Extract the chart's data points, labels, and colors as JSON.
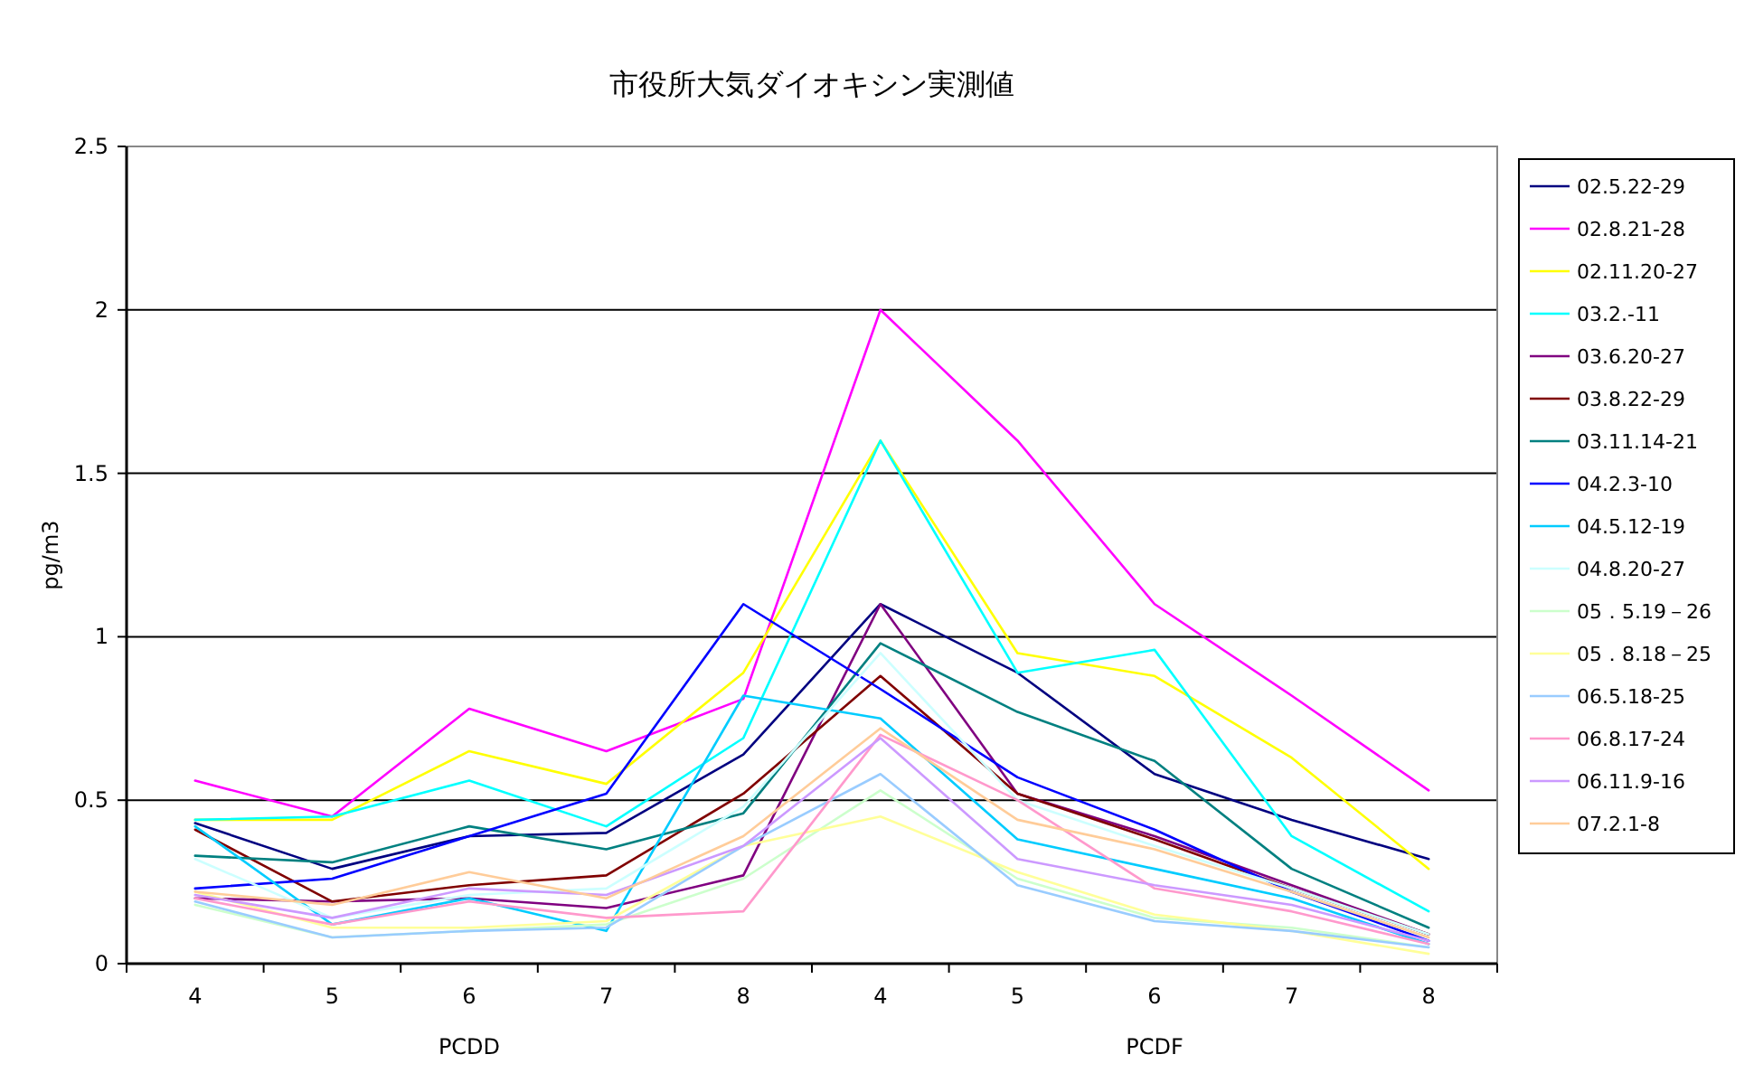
{
  "chart_data": {
    "type": "line",
    "title": "市役所大気ダイオキシン実測値",
    "ylabel": "pg/m3",
    "categories": [
      "4",
      "5",
      "6",
      "7",
      "8",
      "4",
      "5",
      "6",
      "7",
      "8"
    ],
    "annotations": [
      "PCDD",
      "PCDF"
    ],
    "ylim": [
      0,
      2.5
    ],
    "yticks": [
      0,
      0.5,
      1,
      1.5,
      2,
      2.5
    ],
    "grid": "y",
    "legend": "right",
    "marker": "none",
    "line_style": "solid",
    "series": [
      {
        "name": "02.5.22-29",
        "color": "#000080",
        "values": [
          0.43,
          0.29,
          0.39,
          0.4,
          0.64,
          1.1,
          0.89,
          0.58,
          0.44,
          0.32
        ]
      },
      {
        "name": "02.8.21-28",
        "color": "#ff00ff",
        "values": [
          0.56,
          0.45,
          0.78,
          0.65,
          0.81,
          2.0,
          1.6,
          1.1,
          0.82,
          0.53
        ]
      },
      {
        "name": "02.11.20-27",
        "color": "#ffff00",
        "values": [
          0.44,
          0.44,
          0.65,
          0.55,
          0.89,
          1.6,
          0.95,
          0.88,
          0.63,
          0.29
        ]
      },
      {
        "name": "03.2.-11",
        "color": "#00ffff",
        "values": [
          0.44,
          0.45,
          0.56,
          0.42,
          0.69,
          1.6,
          0.89,
          0.96,
          0.39,
          0.16
        ]
      },
      {
        "name": "03.6.20-27",
        "color": "#800080",
        "values": [
          0.2,
          0.19,
          0.2,
          0.17,
          0.27,
          1.1,
          0.52,
          0.39,
          0.24,
          0.09
        ]
      },
      {
        "name": "03.8.22-29",
        "color": "#800000",
        "values": [
          0.41,
          0.19,
          0.24,
          0.27,
          0.52,
          0.88,
          0.52,
          0.38,
          0.23,
          0.09
        ]
      },
      {
        "name": "03.11.14-21",
        "color": "#008080",
        "values": [
          0.33,
          0.31,
          0.42,
          0.35,
          0.46,
          0.98,
          0.77,
          0.62,
          0.29,
          0.11
        ]
      },
      {
        "name": "04.2.3-10",
        "color": "#0000ff",
        "values": [
          0.23,
          0.26,
          0.39,
          0.52,
          1.1,
          0.84,
          0.57,
          0.41,
          0.22,
          0.07
        ]
      },
      {
        "name": "04.5.12-19",
        "color": "#00ccff",
        "values": [
          0.42,
          0.12,
          0.2,
          0.1,
          0.82,
          0.75,
          0.38,
          0.29,
          0.2,
          0.06
        ]
      },
      {
        "name": "04.8.20-27",
        "color": "#ccffff",
        "values": [
          0.32,
          0.14,
          0.21,
          0.23,
          0.48,
          0.95,
          0.5,
          0.36,
          0.23,
          0.09
        ]
      },
      {
        "name": "05．5.19－26",
        "color": "#ccffcc",
        "values": [
          0.18,
          0.08,
          0.1,
          0.12,
          0.26,
          0.53,
          0.26,
          0.14,
          0.11,
          0.05
        ]
      },
      {
        "name": "05．8.18－25",
        "color": "#ffff99",
        "values": [
          0.22,
          0.11,
          0.11,
          0.13,
          0.36,
          0.45,
          0.28,
          0.15,
          0.1,
          0.03
        ]
      },
      {
        "name": "06.5.18-25",
        "color": "#99ccff",
        "values": [
          0.19,
          0.08,
          0.1,
          0.11,
          0.36,
          0.58,
          0.24,
          0.13,
          0.1,
          0.05
        ]
      },
      {
        "name": "06.8.17-24",
        "color": "#ff99cc",
        "values": [
          0.2,
          0.12,
          0.19,
          0.14,
          0.16,
          0.7,
          0.5,
          0.23,
          0.16,
          0.06
        ]
      },
      {
        "name": "06.11.9-16",
        "color": "#cc99ff",
        "values": [
          0.21,
          0.14,
          0.23,
          0.21,
          0.36,
          0.69,
          0.32,
          0.24,
          0.18,
          0.07
        ]
      },
      {
        "name": "07.2.1-8",
        "color": "#ffcc99",
        "values": [
          0.22,
          0.18,
          0.28,
          0.2,
          0.39,
          0.72,
          0.44,
          0.35,
          0.22,
          0.08
        ]
      }
    ]
  }
}
